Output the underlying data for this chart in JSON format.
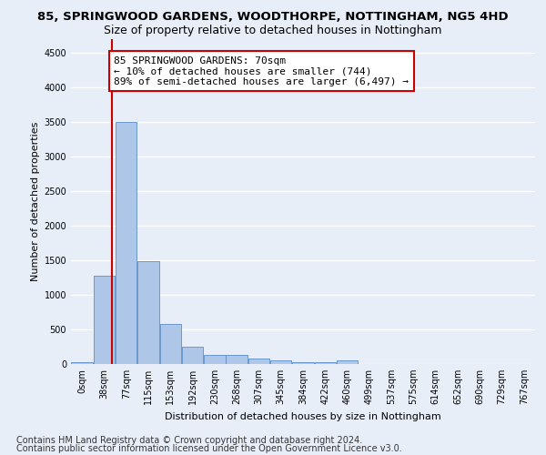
{
  "title": "85, SPRINGWOOD GARDENS, WOODTHORPE, NOTTINGHAM, NG5 4HD",
  "subtitle": "Size of property relative to detached houses in Nottingham",
  "xlabel": "Distribution of detached houses by size in Nottingham",
  "ylabel": "Number of detached properties",
  "bar_labels": [
    "0sqm",
    "38sqm",
    "77sqm",
    "115sqm",
    "153sqm",
    "192sqm",
    "230sqm",
    "268sqm",
    "307sqm",
    "345sqm",
    "384sqm",
    "422sqm",
    "460sqm",
    "499sqm",
    "537sqm",
    "575sqm",
    "614sqm",
    "652sqm",
    "690sqm",
    "729sqm",
    "767sqm"
  ],
  "bar_values": [
    30,
    1270,
    3500,
    1480,
    580,
    250,
    130,
    125,
    75,
    55,
    30,
    20,
    50,
    0,
    0,
    0,
    0,
    0,
    0,
    0,
    0
  ],
  "bar_color": "#aec6e8",
  "bar_edge_color": "#5b8fc9",
  "annotation_text": "85 SPRINGWOOD GARDENS: 70sqm\n← 10% of detached houses are smaller (744)\n89% of semi-detached houses are larger (6,497) →",
  "annotation_box_color": "#ffffff",
  "annotation_box_edge_color": "#cc0000",
  "vline_color": "#cc0000",
  "ylim": [
    0,
    4700
  ],
  "yticks": [
    0,
    500,
    1000,
    1500,
    2000,
    2500,
    3000,
    3500,
    4000,
    4500
  ],
  "footer_line1": "Contains HM Land Registry data © Crown copyright and database right 2024.",
  "footer_line2": "Contains public sector information licensed under the Open Government Licence v3.0.",
  "bg_color": "#e8eef8",
  "plot_bg_color": "#e8eef8",
  "grid_color": "#ffffff",
  "title_fontsize": 9.5,
  "subtitle_fontsize": 9,
  "axis_label_fontsize": 8,
  "tick_fontsize": 7,
  "annotation_fontsize": 8,
  "footer_fontsize": 7
}
